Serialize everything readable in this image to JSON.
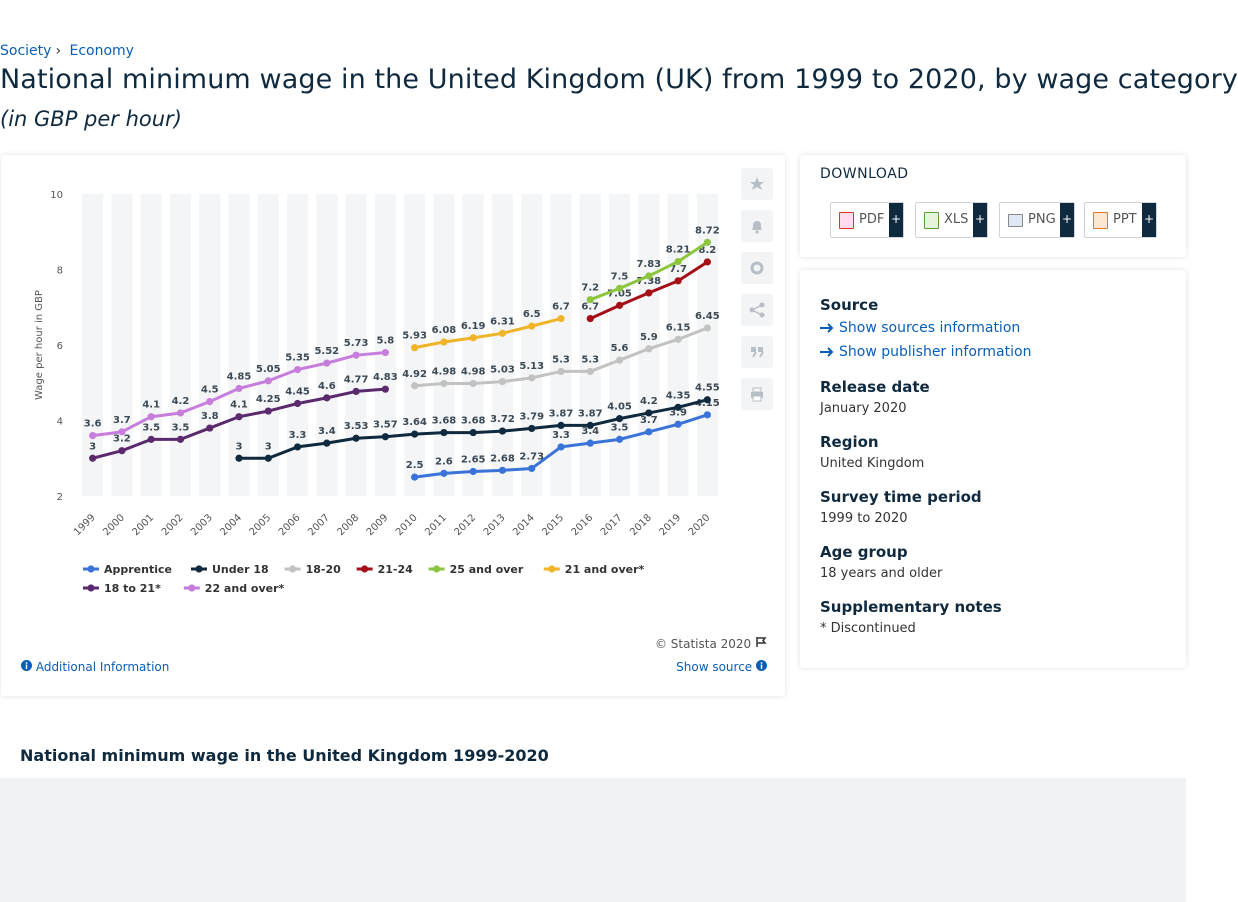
{
  "breadcrumb": {
    "items": [
      "Society",
      "Economy"
    ],
    "separator": "›"
  },
  "header": {
    "title": "National minimum wage in the United Kingdom (UK) from 1999 to 2020, by wage category",
    "subtitle": "(in GBP per hour)"
  },
  "chart_data": {
    "type": "line",
    "y_label": "Wage per hour in GBP",
    "categories": [
      "1999",
      "2000",
      "2001",
      "2002",
      "2003",
      "2004",
      "2005",
      "2006",
      "2007",
      "2008",
      "2009",
      "2010",
      "2011",
      "2012",
      "2013",
      "2014",
      "2015",
      "2016",
      "2017",
      "2018",
      "2019",
      "2020"
    ],
    "ylim": [
      2,
      10
    ],
    "yticks": [
      2,
      4,
      6,
      8,
      10
    ],
    "data_labels": true,
    "series": [
      {
        "name": "Apprentice",
        "color": "#3a74d8",
        "values": [
          null,
          null,
          null,
          null,
          null,
          null,
          null,
          null,
          null,
          null,
          null,
          2.5,
          2.6,
          2.65,
          2.68,
          2.73,
          3.3,
          3.4,
          3.5,
          3.7,
          3.9,
          4.15
        ]
      },
      {
        "name": "Under 18",
        "color": "#0f2a3f",
        "values": [
          null,
          null,
          null,
          null,
          null,
          3,
          3,
          3.3,
          3.4,
          3.53,
          3.57,
          3.64,
          3.68,
          3.68,
          3.72,
          3.79,
          3.87,
          3.87,
          4.05,
          4.2,
          4.35,
          4.55
        ]
      },
      {
        "name": "18-20",
        "color": "#c2c2c2",
        "values": [
          null,
          null,
          null,
          null,
          null,
          null,
          null,
          null,
          null,
          null,
          null,
          4.92,
          4.98,
          4.98,
          5.03,
          5.13,
          5.3,
          5.3,
          5.6,
          5.9,
          6.15,
          6.45
        ]
      },
      {
        "name": "21-24",
        "color": "#a50f17",
        "values": [
          null,
          null,
          null,
          null,
          null,
          null,
          null,
          null,
          null,
          null,
          null,
          null,
          null,
          null,
          null,
          null,
          null,
          6.7,
          7.05,
          7.38,
          7.7,
          8.2
        ]
      },
      {
        "name": "25 and over",
        "color": "#8cc63f",
        "values": [
          null,
          null,
          null,
          null,
          null,
          null,
          null,
          null,
          null,
          null,
          null,
          null,
          null,
          null,
          null,
          null,
          null,
          7.2,
          7.5,
          7.83,
          8.21,
          8.72
        ]
      },
      {
        "name": "21 and over*",
        "color": "#f0b429",
        "values": [
          null,
          null,
          null,
          null,
          null,
          null,
          null,
          null,
          null,
          null,
          null,
          5.93,
          6.08,
          6.19,
          6.31,
          6.5,
          6.7,
          null,
          null,
          null,
          null,
          null
        ]
      },
      {
        "name": "18 to 21*",
        "color": "#5b2a6e",
        "values": [
          3,
          3.2,
          3.5,
          3.5,
          3.8,
          4.1,
          4.25,
          4.45,
          4.6,
          4.77,
          4.83,
          null,
          null,
          null,
          null,
          null,
          null,
          null,
          null,
          null,
          null,
          null
        ]
      },
      {
        "name": "22 and over*",
        "color": "#c77ddb",
        "values": [
          3.6,
          3.7,
          4.1,
          4.2,
          4.5,
          4.85,
          5.05,
          5.35,
          5.52,
          5.73,
          5.8,
          null,
          null,
          null,
          null,
          null,
          null,
          null,
          null,
          null,
          null,
          null
        ]
      }
    ]
  },
  "chart_footer": {
    "copyright": "© Statista 2020",
    "additional_info": "Additional Information",
    "show_source": "Show source"
  },
  "sidebar": {
    "download_title": "DOWNLOAD",
    "downloads": [
      "PDF",
      "XLS",
      "PNG",
      "PPT"
    ],
    "download_plus": "+",
    "details": [
      {
        "label": "Source",
        "links": [
          "Show sources information",
          "Show publisher information"
        ]
      },
      {
        "label": "Release date",
        "value": "January 2020"
      },
      {
        "label": "Region",
        "value": "United Kingdom"
      },
      {
        "label": "Survey time period",
        "value": "1999 to 2020"
      },
      {
        "label": "Age group",
        "value": "18 years and older"
      },
      {
        "label": "Supplementary notes",
        "value": "* Discontinued"
      }
    ]
  },
  "related": {
    "title": "National minimum wage in the United Kingdom 1999-2020"
  }
}
